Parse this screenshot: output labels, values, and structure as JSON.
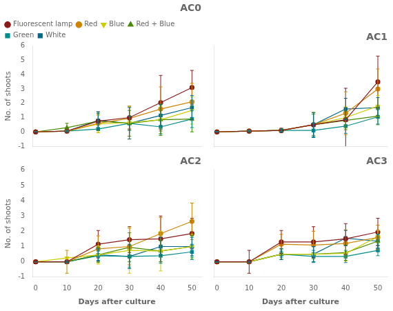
{
  "chart_data": [
    {
      "type": "line",
      "title": "AC0",
      "ylabel": "No. of shoots",
      "x": [
        0,
        10,
        20,
        30,
        40,
        50
      ],
      "xlim": [
        -1,
        53
      ],
      "xticks": [
        0,
        10,
        20,
        30,
        40,
        50
      ],
      "ylim": [
        -1,
        6
      ],
      "yticks": [
        -1,
        0,
        1,
        2,
        3,
        4,
        5,
        6
      ],
      "grid": false,
      "legend": "upper left",
      "tick_labels": "y",
      "series": [
        {
          "name": "Fluorescent lamp",
          "color": "#8B1A1A",
          "marker": "circle",
          "values": [
            0,
            0.05,
            0.75,
            1.0,
            2.05,
            3.1
          ],
          "errors": [
            0,
            0.05,
            0.65,
            0.8,
            1.9,
            1.2
          ]
        },
        {
          "name": "Red",
          "color": "#CD8500",
          "marker": "circle",
          "values": [
            0,
            0.05,
            0.6,
            0.95,
            1.6,
            2.1
          ],
          "errors": [
            0,
            0.05,
            0.65,
            0.8,
            1.55,
            1.3
          ]
        },
        {
          "name": "Blue",
          "color": "#CDCD00",
          "marker": "triangle_down",
          "values": [
            0,
            0.05,
            0.55,
            0.65,
            0.85,
            1.5
          ],
          "errors": [
            0,
            0.05,
            0.6,
            1.15,
            0.95,
            0.95
          ]
        },
        {
          "name": "Red + Blue",
          "color": "#458B00",
          "marker": "triangle_up",
          "values": [
            0,
            0.3,
            0.75,
            0.6,
            0.85,
            0.9
          ],
          "errors": [
            0,
            0.3,
            0.55,
            0.9,
            1.1,
            0.9
          ]
        },
        {
          "name": "Green",
          "color": "#008B8B",
          "marker": "square",
          "values": [
            0,
            0.05,
            0.2,
            0.6,
            0.35,
            0.9
          ],
          "errors": [
            0,
            0.05,
            0.1,
            0.5,
            0.5,
            0.6
          ]
        },
        {
          "name": "White",
          "color": "#00688B",
          "marker": "square",
          "values": [
            0,
            0.05,
            0.8,
            0.6,
            1.15,
            1.7
          ],
          "errors": [
            0,
            0.05,
            0.6,
            1.1,
            0.75,
            0.85
          ]
        }
      ]
    },
    {
      "type": "line",
      "title": "AC1",
      "x": [
        0,
        10,
        20,
        30,
        40,
        50
      ],
      "xlim": [
        -1,
        53
      ],
      "xticks": [
        0,
        10,
        20,
        30,
        40,
        50
      ],
      "ylim": [
        -1,
        6
      ],
      "yticks": [
        -1,
        0,
        1,
        2,
        3,
        4,
        5,
        6
      ],
      "grid": false,
      "tick_labels": false,
      "series": [
        {
          "name": "Fluorescent lamp",
          "color": "#8B1A1A",
          "marker": "circle",
          "values": [
            0,
            0.05,
            0.1,
            0.5,
            0.85,
            3.5
          ],
          "errors": [
            0,
            0.05,
            0.15,
            0.85,
            2.2,
            1.8
          ]
        },
        {
          "name": "Red",
          "color": "#CD8500",
          "marker": "circle",
          "values": [
            0,
            0.05,
            0.1,
            0.5,
            1.3,
            3.0
          ],
          "errors": [
            0,
            0.05,
            0.1,
            0.85,
            1.5,
            1.4
          ]
        },
        {
          "name": "Blue",
          "color": "#CDCD00",
          "marker": "triangle_down",
          "values": [
            0,
            0.05,
            0.1,
            0.5,
            1.0,
            1.8
          ],
          "errors": [
            0,
            0.05,
            0.1,
            0.85,
            0.75,
            0.75
          ]
        },
        {
          "name": "Red + Blue",
          "color": "#458B00",
          "marker": "triangle_up",
          "values": [
            0,
            0.05,
            0.1,
            0.5,
            0.8,
            1.1
          ],
          "errors": [
            0,
            0.05,
            0.1,
            0.75,
            0.65,
            0.6
          ]
        },
        {
          "name": "Green",
          "color": "#008B8B",
          "marker": "square",
          "values": [
            0,
            0.05,
            0.1,
            0.1,
            0.4,
            1.05
          ],
          "errors": [
            0,
            0.05,
            0.1,
            0.5,
            0.5,
            0.5
          ]
        },
        {
          "name": "White",
          "color": "#00688B",
          "marker": "square",
          "values": [
            0,
            0.05,
            0.1,
            0.5,
            1.6,
            1.7
          ],
          "errors": [
            0,
            0.05,
            0.1,
            0.85,
            0.75,
            0.7
          ]
        }
      ]
    },
    {
      "type": "line",
      "title": "AC2",
      "xlabel": "Days after culture",
      "ylabel": "No. of shoots",
      "x": [
        0,
        10,
        20,
        30,
        40,
        50
      ],
      "xlim": [
        -1,
        53
      ],
      "xticks": [
        0,
        10,
        20,
        30,
        40,
        50
      ],
      "ylim": [
        -1,
        6
      ],
      "yticks": [
        -1,
        0,
        1,
        2,
        3,
        4,
        5,
        6
      ],
      "grid": false,
      "series": [
        {
          "name": "Fluorescent lamp",
          "color": "#8B1A1A",
          "marker": "circle",
          "values": [
            0,
            0.0,
            1.15,
            1.45,
            1.5,
            1.85
          ],
          "errors": [
            0,
            0.05,
            0.9,
            0.85,
            1.5,
            1.0
          ]
        },
        {
          "name": "Red",
          "color": "#CD8500",
          "marker": "circle",
          "values": [
            0,
            0.0,
            0.85,
            1.0,
            1.85,
            2.65
          ],
          "errors": [
            0,
            0.75,
            0.85,
            1.2,
            1.05,
            1.2
          ]
        },
        {
          "name": "Blue",
          "color": "#CDCD00",
          "marker": "triangle_down",
          "values": [
            0,
            0.25,
            0.45,
            0.75,
            0.7,
            1.0
          ],
          "errors": [
            0,
            0.05,
            0.6,
            1.5,
            1.3,
            0.8
          ]
        },
        {
          "name": "Red + Blue",
          "color": "#458B00",
          "marker": "triangle_up",
          "values": [
            0,
            0.0,
            0.45,
            0.95,
            0.7,
            1.0
          ],
          "errors": [
            0,
            0.05,
            0.5,
            0.95,
            0.7,
            0.7
          ]
        },
        {
          "name": "Green",
          "color": "#008B8B",
          "marker": "square",
          "values": [
            0,
            0.0,
            0.4,
            0.35,
            0.4,
            0.65
          ],
          "errors": [
            0,
            0.05,
            0.3,
            0.7,
            0.5,
            0.5
          ]
        },
        {
          "name": "White",
          "color": "#00688B",
          "marker": "square",
          "values": [
            0,
            0.0,
            0.45,
            0.35,
            1.0,
            1.0
          ],
          "errors": [
            0,
            0.05,
            0.4,
            0.8,
            0.6,
            0.6
          ]
        }
      ]
    },
    {
      "type": "line",
      "title": "AC3",
      "xlabel": "Days after culture",
      "x": [
        0,
        10,
        20,
        30,
        40,
        50
      ],
      "xlim": [
        -1,
        53
      ],
      "xticks": [
        0,
        10,
        20,
        30,
        40,
        50
      ],
      "ylim": [
        -1,
        6
      ],
      "yticks": [
        -1,
        0,
        1,
        2,
        3,
        4,
        5,
        6
      ],
      "grid": false,
      "tick_labels": "x",
      "series": [
        {
          "name": "Fluorescent lamp",
          "color": "#8B1A1A",
          "marker": "circle",
          "values": [
            0,
            0.0,
            1.3,
            1.3,
            1.5,
            1.95
          ],
          "errors": [
            0,
            0.75,
            0.75,
            1.0,
            1.0,
            0.9
          ]
        },
        {
          "name": "Red",
          "color": "#CD8500",
          "marker": "circle",
          "values": [
            0,
            0.0,
            1.15,
            1.1,
            1.2,
            1.6
          ],
          "errors": [
            0,
            0.05,
            0.65,
            0.9,
            0.9,
            0.8
          ]
        },
        {
          "name": "Blue",
          "color": "#CDCD00",
          "marker": "triangle_down",
          "values": [
            0,
            0.0,
            0.5,
            0.5,
            0.55,
            1.65
          ],
          "errors": [
            0,
            0.05,
            0.35,
            0.5,
            0.5,
            0.4
          ]
        },
        {
          "name": "Red + Blue",
          "color": "#458B00",
          "marker": "triangle_up",
          "values": [
            0,
            0.0,
            0.5,
            0.5,
            0.6,
            1.35
          ],
          "errors": [
            0,
            0.05,
            0.35,
            0.5,
            0.5,
            0.45
          ]
        },
        {
          "name": "Green",
          "color": "#008B8B",
          "marker": "square",
          "values": [
            0,
            0.0,
            0.5,
            0.35,
            0.35,
            0.75
          ],
          "errors": [
            0,
            0.05,
            0.2,
            0.4,
            0.4,
            0.35
          ]
        },
        {
          "name": "White",
          "color": "#00688B",
          "marker": "square",
          "values": [
            0,
            0.0,
            0.5,
            0.5,
            1.55,
            1.35
          ],
          "errors": [
            0,
            0.05,
            0.35,
            0.5,
            0.5,
            0.45
          ]
        }
      ]
    }
  ]
}
